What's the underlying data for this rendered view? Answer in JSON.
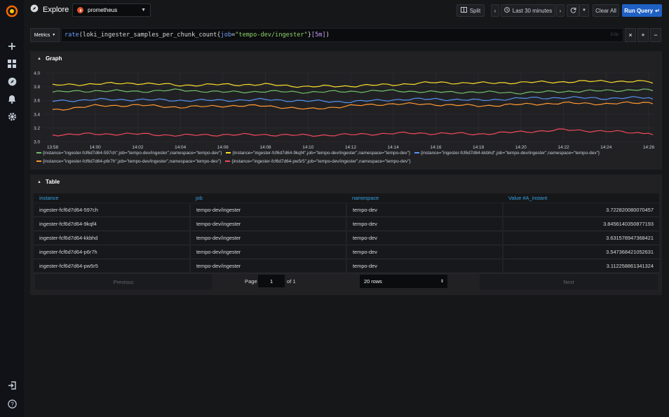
{
  "colors": {
    "accent": "#1f60c4",
    "link": "#33a2e5",
    "series": [
      "#73bf69",
      "#fade2a",
      "#5794f2",
      "#ff9830",
      "#f2495c"
    ]
  },
  "sidebar": {
    "icons": [
      "grafana-logo-icon",
      "plus-icon",
      "dashboards-icon",
      "explore-icon",
      "alerting-bell-icon",
      "gear-icon"
    ],
    "bottom_icons": [
      "sign-in-icon",
      "help-icon"
    ]
  },
  "topbar": {
    "title": "Explore",
    "datasource": "prometheus",
    "split_label": "Split",
    "time_range": "Last 30 minutes",
    "clear_label": "Clear All",
    "run_label": "Run Query"
  },
  "query": {
    "metrics_label": "Metrics",
    "fn": "rate",
    "metric": "loki_ingester_samples_per_chunk_count",
    "attr": "job",
    "value": "\"tempo-dev/ingester\"",
    "range": "[5m]",
    "time": "0.0s"
  },
  "graph": {
    "title": "Graph",
    "x_ticks": [
      "13:58",
      "14:00",
      "14:02",
      "14:04",
      "14:06",
      "14:08",
      "14:10",
      "14:12",
      "14:14",
      "14:16",
      "14:18",
      "14:20",
      "14:22",
      "14:24",
      "14:26"
    ],
    "y_ticks": [
      "4.0",
      "3.8",
      "3.6",
      "3.4",
      "3.2",
      "3.0"
    ]
  },
  "chart_data": {
    "type": "line",
    "ylim": [
      3.0,
      4.0
    ],
    "x": [
      "13:58",
      "14:00",
      "14:02",
      "14:04",
      "14:06",
      "14:08",
      "14:10",
      "14:12",
      "14:14",
      "14:16",
      "14:18",
      "14:20",
      "14:22",
      "14:24",
      "14:26"
    ],
    "series": [
      {
        "name": "{instance=\"ingester-fcf6d7d64-597ch\",job=\"tempo-dev/ingester\",namespace=\"tempo-dev\"}",
        "color": "#73bf69",
        "values": [
          3.72,
          3.74,
          3.73,
          3.75,
          3.72,
          3.73,
          3.72,
          3.73,
          3.74,
          3.72,
          3.72,
          3.71,
          3.73,
          3.74,
          3.76
        ]
      },
      {
        "name": "{instance=\"ingester-fcf6d7d64-9kqf4\",job=\"tempo-dev/ingester\",namespace=\"tempo-dev\"}",
        "color": "#fade2a",
        "values": [
          3.82,
          3.84,
          3.85,
          3.82,
          3.83,
          3.83,
          3.8,
          3.81,
          3.83,
          3.86,
          3.85,
          3.86,
          3.87,
          3.88,
          3.87
        ]
      },
      {
        "name": "{instance=\"ingester-fcf6d7d64-kkbhd\",job=\"tempo-dev/ingester\",namespace=\"tempo-dev\"}",
        "color": "#5794f2",
        "values": [
          3.59,
          3.61,
          3.61,
          3.6,
          3.6,
          3.61,
          3.59,
          3.58,
          3.61,
          3.62,
          3.6,
          3.63,
          3.64,
          3.63,
          3.64
        ]
      },
      {
        "name": "{instance=\"ingester-fcf6d7d64-p6r7h\",job=\"tempo-dev/ingester\",namespace=\"tempo-dev\"}",
        "color": "#ff9830",
        "values": [
          3.46,
          3.52,
          3.53,
          3.5,
          3.52,
          3.52,
          3.47,
          3.52,
          3.55,
          3.54,
          3.52,
          3.54,
          3.56,
          3.55,
          3.57
        ]
      },
      {
        "name": "{instance=\"ingester-fcf6d7d64-pw5r5\",job=\"tempo-dev/ingester\",namespace=\"tempo-dev\"}",
        "color": "#f2495c",
        "values": [
          3.1,
          3.11,
          3.11,
          3.09,
          3.1,
          3.1,
          3.09,
          3.1,
          3.12,
          3.12,
          3.11,
          3.14,
          3.17,
          3.15,
          3.12
        ]
      }
    ]
  },
  "table": {
    "title": "Table",
    "columns": [
      "instance",
      "job",
      "namespace",
      "Value #A_instant"
    ],
    "rows": [
      [
        "ingester-fcf6d7d64-597ch",
        "tempo-dev/ingester",
        "tempo-dev",
        "3.722820080070457"
      ],
      [
        "ingester-fcf6d7d64-9kqf4",
        "tempo-dev/ingester",
        "tempo-dev",
        "3.8456140350877193"
      ],
      [
        "ingester-fcf6d7d64-kkbhd",
        "tempo-dev/ingester",
        "tempo-dev",
        "3.631578947368421"
      ],
      [
        "ingester-fcf6d7d64-p6r7h",
        "tempo-dev/ingester",
        "tempo-dev",
        "3.547368421052631"
      ],
      [
        "ingester-fcf6d7d64-pw5r5",
        "tempo-dev/ingester",
        "tempo-dev",
        "3.112258861341324"
      ]
    ],
    "pagination": {
      "previous": "Previous",
      "next": "Next",
      "page_label": "Page",
      "page": "1",
      "of_label": "of 1",
      "rows": "20 rows"
    }
  }
}
